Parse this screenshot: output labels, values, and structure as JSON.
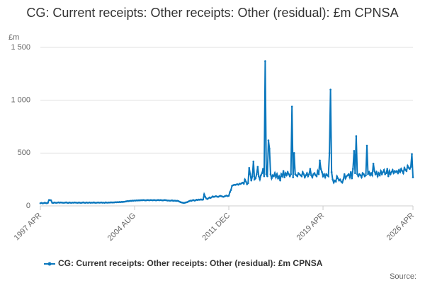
{
  "chart_data": {
    "type": "line",
    "title": "CG: Current receipts: Other receipts: Other (residual): £m CPNSA",
    "y_label": "£m",
    "source": "Source:",
    "x": [
      "1997 APR",
      "1997 MAY",
      "1997 JUN",
      "1997 JUL",
      "1997 AUG",
      "1997 SEP",
      "1997 OCT",
      "1997 NOV",
      "1997 DEC",
      "1998 JAN",
      "1998 FEB",
      "1998 MAR",
      "1998 APR",
      "1998 MAY",
      "1998 JUN",
      "1998 JUL",
      "1998 AUG",
      "1998 SEP",
      "1998 OCT",
      "1998 NOV",
      "1998 DEC",
      "1999 JAN",
      "1999 FEB",
      "1999 MAR",
      "1999 APR",
      "1999 MAY",
      "1999 JUN",
      "1999 JUL",
      "1999 AUG",
      "1999 SEP",
      "1999 OCT",
      "1999 NOV",
      "1999 DEC",
      "2000 JAN",
      "2000 FEB",
      "2000 MAR",
      "2000 APR",
      "2000 MAY",
      "2000 JUN",
      "2000 JUL",
      "2000 AUG",
      "2000 SEP",
      "2000 OCT",
      "2000 NOV",
      "2000 DEC",
      "2001 JAN",
      "2001 FEB",
      "2001 MAR",
      "2001 APR",
      "2001 MAY",
      "2001 JUN",
      "2001 JUL",
      "2001 AUG",
      "2001 SEP",
      "2001 OCT",
      "2001 NOV",
      "2001 DEC",
      "2002 JAN",
      "2002 FEB",
      "2002 MAR",
      "2002 APR",
      "2002 MAY",
      "2002 JUN",
      "2002 JUL",
      "2002 AUG",
      "2002 SEP",
      "2002 OCT",
      "2002 NOV",
      "2002 DEC",
      "2003 JAN",
      "2003 FEB",
      "2003 MAR",
      "2003 APR",
      "2003 MAY",
      "2003 JUN",
      "2003 JUL",
      "2003 AUG",
      "2003 SEP",
      "2003 OCT",
      "2003 NOV",
      "2003 DEC",
      "2004 JAN",
      "2004 FEB",
      "2004 MAR",
      "2004 APR",
      "2004 MAY",
      "2004 JUN",
      "2004 JUL",
      "2004 AUG",
      "2004 SEP",
      "2004 OCT",
      "2004 NOV",
      "2004 DEC",
      "2005 JAN",
      "2005 FEB",
      "2005 MAR",
      "2005 APR",
      "2005 MAY",
      "2005 JUN",
      "2005 JUL",
      "2005 AUG",
      "2005 SEP",
      "2005 OCT",
      "2005 NOV",
      "2005 DEC",
      "2006 JAN",
      "2006 FEB",
      "2006 MAR",
      "2006 APR",
      "2006 MAY",
      "2006 JUN",
      "2006 JUL",
      "2006 AUG",
      "2006 SEP",
      "2006 OCT",
      "2006 NOV",
      "2006 DEC",
      "2007 JAN",
      "2007 FEB",
      "2007 MAR",
      "2007 APR",
      "2007 MAY",
      "2007 JUN",
      "2007 JUL",
      "2007 AUG",
      "2007 SEP",
      "2007 OCT",
      "2007 NOV",
      "2007 DEC",
      "2008 JAN",
      "2008 FEB",
      "2008 MAR",
      "2008 APR",
      "2008 MAY",
      "2008 JUN",
      "2008 JUL",
      "2008 AUG",
      "2008 SEP",
      "2008 OCT",
      "2008 NOV",
      "2008 DEC",
      "2009 JAN",
      "2009 FEB",
      "2009 MAR",
      "2009 APR",
      "2009 MAY",
      "2009 JUN",
      "2009 JUL",
      "2009 AUG",
      "2009 SEP",
      "2009 OCT",
      "2009 NOV",
      "2009 DEC",
      "2010 JAN",
      "2010 FEB",
      "2010 MAR",
      "2010 APR",
      "2010 MAY",
      "2010 JUN",
      "2010 JUL",
      "2010 AUG",
      "2010 SEP",
      "2010 OCT",
      "2010 NOV",
      "2010 DEC",
      "2011 JAN",
      "2011 FEB",
      "2011 MAR",
      "2011 APR",
      "2011 MAY",
      "2011 JUN",
      "2011 JUL",
      "2011 AUG",
      "2011 SEP",
      "2011 OCT",
      "2011 NOV",
      "2011 DEC",
      "2012 JAN",
      "2012 FEB",
      "2012 MAR",
      "2012 APR",
      "2012 MAY",
      "2012 JUN",
      "2012 JUL",
      "2012 AUG",
      "2012 SEP",
      "2012 OCT",
      "2012 NOV",
      "2012 DEC",
      "2013 JAN",
      "2013 FEB",
      "2013 MAR",
      "2013 APR",
      "2013 MAY",
      "2013 JUN",
      "2013 JUL",
      "2013 AUG",
      "2013 SEP",
      "2013 OCT",
      "2013 NOV",
      "2013 DEC",
      "2014 JAN",
      "2014 FEB",
      "2014 MAR",
      "2014 APR",
      "2014 MAY",
      "2014 JUN",
      "2014 JUL",
      "2014 AUG",
      "2014 SEP",
      "2014 OCT",
      "2014 NOV",
      "2014 DEC",
      "2015 JAN",
      "2015 FEB",
      "2015 MAR",
      "2015 APR",
      "2015 MAY",
      "2015 JUN",
      "2015 JUL",
      "2015 AUG",
      "2015 SEP",
      "2015 OCT",
      "2015 NOV",
      "2015 DEC",
      "2016 JAN",
      "2016 FEB",
      "2016 MAR",
      "2016 APR",
      "2016 MAY",
      "2016 JUN",
      "2016 JUL",
      "2016 AUG",
      "2016 SEP",
      "2016 OCT",
      "2016 NOV",
      "2016 DEC",
      "2017 JAN",
      "2017 FEB",
      "2017 MAR",
      "2017 APR",
      "2017 MAY",
      "2017 JUN",
      "2017 JUL",
      "2017 AUG",
      "2017 SEP",
      "2017 OCT",
      "2017 NOV",
      "2017 DEC",
      "2018 JAN",
      "2018 FEB",
      "2018 MAR",
      "2018 APR",
      "2018 MAY",
      "2018 JUN",
      "2018 JUL",
      "2018 AUG",
      "2018 SEP",
      "2018 OCT",
      "2018 NOV",
      "2018 DEC",
      "2019 JAN",
      "2019 FEB",
      "2019 MAR",
      "2019 APR",
      "2019 MAY",
      "2019 JUN",
      "2019 JUL",
      "2019 AUG",
      "2019 SEP",
      "2019 OCT",
      "2019 NOV",
      "2019 DEC",
      "2020 JAN",
      "2020 FEB",
      "2020 MAR",
      "2020 APR",
      "2020 MAY",
      "2020 JUN",
      "2020 JUL",
      "2020 AUG",
      "2020 SEP",
      "2020 OCT",
      "2020 NOV",
      "2020 DEC",
      "2021 JAN",
      "2021 FEB",
      "2021 MAR",
      "2021 APR",
      "2021 MAY",
      "2021 JUN",
      "2021 JUL",
      "2021 AUG",
      "2021 SEP",
      "2021 OCT",
      "2021 NOV",
      "2021 DEC",
      "2022 JAN",
      "2022 FEB",
      "2022 MAR",
      "2022 APR",
      "2022 MAY",
      "2022 JUN",
      "2022 JUL",
      "2022 AUG",
      "2022 SEP",
      "2022 OCT",
      "2022 NOV",
      "2022 DEC",
      "2023 JAN",
      "2023 FEB",
      "2023 MAR",
      "2023 APR",
      "2023 MAY",
      "2023 JUN",
      "2023 JUL",
      "2023 AUG",
      "2023 SEP",
      "2023 OCT",
      "2023 NOV",
      "2023 DEC",
      "2024 JAN",
      "2024 FEB",
      "2024 MAR",
      "2024 APR",
      "2024 MAY",
      "2024 JUN",
      "2024 JUL",
      "2024 AUG",
      "2024 SEP",
      "2024 OCT",
      "2024 NOV",
      "2024 DEC",
      "2025 JAN",
      "2025 FEB",
      "2025 MAR",
      "2025 APR",
      "2025 MAY",
      "2025 JUN",
      "2025 JUL",
      "2025 AUG",
      "2025 SEP",
      "2025 OCT",
      "2025 NOV",
      "2025 DEC",
      "2026 JAN",
      "2026 FEB",
      "2026 MAR",
      "2026 APR"
    ],
    "series": [
      {
        "name": "CG: Current receipts: Other receipts: Other (residual): £m CPNSA",
        "color": "#0a77bd",
        "values": [
          25,
          28,
          24,
          26,
          30,
          27,
          25,
          29,
          55,
          55,
          52,
          30,
          28,
          32,
          30,
          29,
          31,
          33,
          30,
          32,
          31,
          30,
          29,
          31,
          33,
          30,
          28,
          32,
          30,
          29,
          31,
          30,
          32,
          31,
          30,
          29,
          32,
          30,
          28,
          31,
          33,
          30,
          29,
          32,
          30,
          30,
          32,
          29,
          31,
          30,
          33,
          30,
          29,
          31,
          32,
          30,
          31,
          32,
          30,
          31,
          29,
          33,
          31,
          30,
          32,
          31,
          34,
          32,
          33,
          33,
          35,
          34,
          36,
          35,
          37,
          36,
          38,
          37,
          39,
          40,
          42,
          45,
          44,
          46,
          48,
          47,
          50,
          49,
          51,
          50,
          52,
          51,
          53,
          52,
          54,
          53,
          55,
          54,
          52,
          53,
          55,
          54,
          53,
          55,
          54,
          53,
          55,
          54,
          52,
          54,
          56,
          53,
          55,
          54,
          52,
          53,
          55,
          54,
          52,
          50,
          51,
          49,
          50,
          52,
          48,
          50,
          49,
          47,
          48,
          45,
          40,
          35,
          32,
          30,
          28,
          30,
          33,
          35,
          40,
          45,
          50,
          48,
          52,
          55,
          50,
          53,
          58,
          55,
          60,
          57,
          62,
          58,
          60,
          110,
          85,
          70,
          65,
          72,
          80,
          75,
          82,
          90,
          85,
          88,
          92,
          88,
          85,
          90,
          95,
          92,
          88,
          86,
          90,
          94,
          98,
          92,
          96,
          130,
          150,
          190,
          195,
          200,
          198,
          202,
          205,
          200,
          210,
          208,
          215,
          220,
          210,
          250,
          230,
          205,
          215,
          360,
          300,
          240,
          280,
          420,
          250,
          260,
          300,
          370,
          280,
          250,
          290,
          310,
          350,
          280,
          1370,
          300,
          280,
          620,
          540,
          300,
          260,
          290,
          280,
          310,
          270,
          300,
          260,
          280,
          240,
          300,
          280,
          330,
          270,
          310,
          290,
          320,
          300,
          280,
          300,
          940,
          270,
          500,
          300,
          290,
          280,
          310,
          300,
          290,
          280,
          320,
          300,
          270,
          290,
          310,
          280,
          300,
          350,
          290,
          270,
          300,
          310,
          290,
          280,
          330,
          300,
          430,
          350,
          320,
          280,
          300,
          270,
          300,
          290,
          280,
          500,
          1100,
          320,
          250,
          220,
          240,
          230,
          280,
          260,
          240,
          250,
          230,
          220,
          250,
          300,
          260,
          280,
          290,
          300,
          270,
          320,
          260,
          350,
          520,
          310,
          660,
          300,
          280,
          300,
          290,
          270,
          310,
          300,
          280,
          290,
          570,
          300,
          320,
          290,
          310,
          290,
          400,
          330,
          300,
          320,
          280,
          310,
          290,
          330,
          300,
          320,
          340,
          300,
          310,
          350,
          280,
          330,
          300,
          320,
          340,
          310,
          330,
          320,
          330,
          310,
          340,
          320,
          350,
          330,
          310,
          360,
          340,
          330,
          380,
          360,
          350,
          370,
          490,
          270
        ]
      }
    ],
    "xticks": [
      "1997 APR",
      "2004 AUG",
      "2011 DEC",
      "2019 APR",
      "2026 APR"
    ],
    "ylim": [
      0,
      1500
    ],
    "yticks": [
      0,
      500,
      {
        "value": 1000,
        "label": "1 000"
      },
      {
        "value": 1500,
        "label": "1 500"
      }
    ],
    "grid": true
  }
}
